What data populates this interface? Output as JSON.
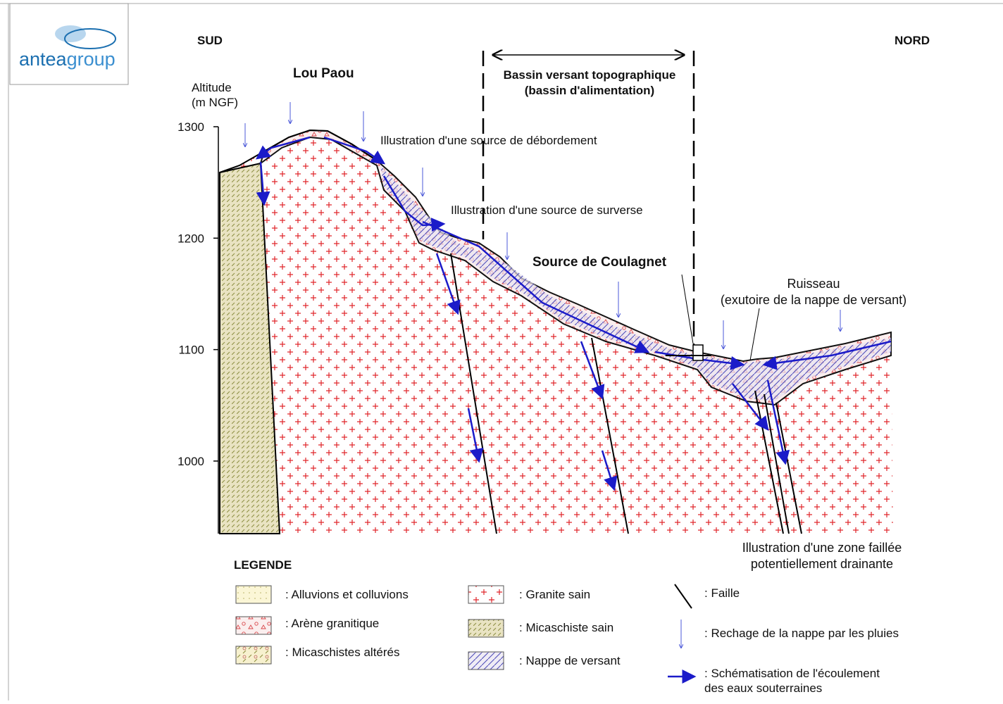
{
  "logo": {
    "part1": "antea",
    "part2": "group"
  },
  "labels": {
    "south": "SUD",
    "north": "NORD",
    "summit": "Lou Paou",
    "source_overflow": "Illustration d'une source de débordement",
    "source_surverse": "Illustration d'une source de surverse",
    "spring": "Source de Coulagnet"
  },
  "axis": {
    "title": [
      "Altitude",
      "(m NGF)"
    ],
    "ticks": [
      1300,
      1200,
      1100,
      1000
    ]
  },
  "catchment": [
    "Bassin versant topographique",
    "(bassin d'alimentation)"
  ],
  "stream": [
    "Ruisseau",
    "(exutoire de la nappe de versant)"
  ],
  "fault_zone": [
    "Illustration d'une zone faillée",
    "potentiellement drainante"
  ],
  "legend": {
    "title": "LEGENDE",
    "items": [
      [
        ": Alluvions et colluvions"
      ],
      [
        ": Arène granitique"
      ],
      [
        ": Micaschistes altérés"
      ],
      [
        ": Granite sain"
      ],
      [
        ": Micaschiste sain"
      ],
      [
        ": Nappe de versant"
      ],
      [
        ": Faille"
      ],
      [
        ": Rechage de la nappe par les pluies"
      ],
      [
        ": Schématisation de l'écoulement",
        "des eaux souterraines"
      ]
    ]
  }
}
